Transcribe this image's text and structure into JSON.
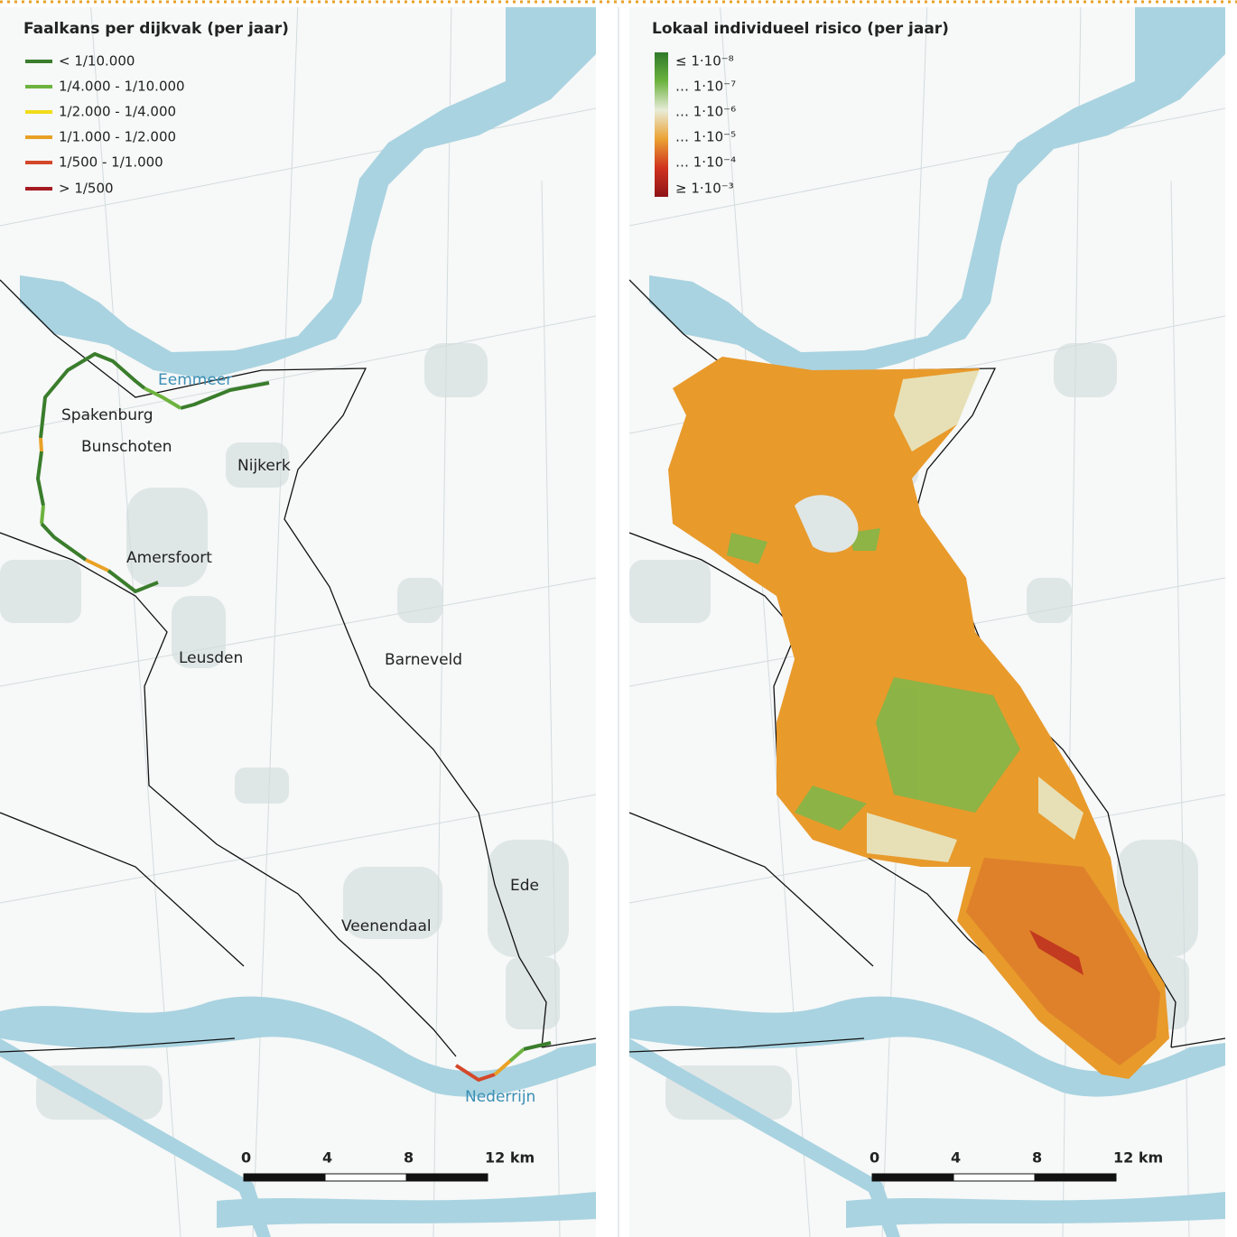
{
  "left_panel": {
    "title": "Faalkans per dijkvak (per jaar)",
    "legend": [
      {
        "label": "< 1/10.000",
        "color": "#3a7d2c"
      },
      {
        "label": "1/4.000 - 1/10.000",
        "color": "#6db33f"
      },
      {
        "label": "1/2.000 - 1/4.000",
        "color": "#f2dc1a"
      },
      {
        "label": "1/1.000 - 1/2.000",
        "color": "#e9a125"
      },
      {
        "label": "1/500 - 1/1.000",
        "color": "#d4482a"
      },
      {
        "label": "> 1/500",
        "color": "#a51b22"
      }
    ],
    "places": [
      "Spakenburg",
      "Bunschoten",
      "Nijkerk",
      "Amersfoort",
      "Leusden",
      "Barneveld",
      "Ede",
      "Veenendaal"
    ],
    "water": [
      "Eemmeer",
      "Nederrijn"
    ],
    "scale": [
      "0",
      "4",
      "8",
      "12 km"
    ]
  },
  "right_panel": {
    "title": "Lokaal individueel risico (per jaar)",
    "legend": [
      "≤ 1·10⁻⁸",
      "… 1·10⁻⁷",
      "… 1·10⁻⁶",
      "… 1·10⁻⁵",
      "… 1·10⁻⁴",
      "≥ 1·10⁻³"
    ],
    "scale": [
      "0",
      "4",
      "8",
      "12 km"
    ]
  }
}
